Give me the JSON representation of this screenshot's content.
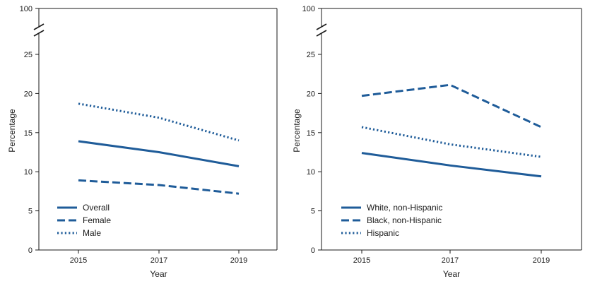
{
  "chart_data": [
    {
      "type": "line",
      "xlabel": "Year",
      "ylabel": "Percentage",
      "x": [
        "2015",
        "2017",
        "2019"
      ],
      "yticks": [
        "0",
        "5",
        "10",
        "15",
        "20",
        "25",
        "100"
      ],
      "ylim": [
        0,
        25
      ],
      "axis_break": {
        "top_label": "100"
      },
      "grid": false,
      "legend_position": "bottom-left",
      "series": [
        {
          "name": "Overall",
          "style": "solid",
          "values": [
            13.9,
            12.5,
            10.7
          ]
        },
        {
          "name": "Female",
          "style": "dashed",
          "values": [
            8.9,
            8.3,
            7.2
          ]
        },
        {
          "name": "Male",
          "style": "dotted",
          "values": [
            18.7,
            16.9,
            14.0
          ]
        }
      ]
    },
    {
      "type": "line",
      "xlabel": "Year",
      "ylabel": "Percentage",
      "x": [
        "2015",
        "2017",
        "2019"
      ],
      "yticks": [
        "0",
        "5",
        "10",
        "15",
        "20",
        "25",
        "100"
      ],
      "ylim": [
        0,
        25
      ],
      "axis_break": {
        "top_label": "100"
      },
      "grid": false,
      "legend_position": "bottom-left",
      "series": [
        {
          "name": "White, non-Hispanic",
          "style": "solid",
          "values": [
            12.4,
            10.8,
            9.4
          ]
        },
        {
          "name": "Black, non-Hispanic",
          "style": "dashed",
          "values": [
            19.7,
            21.1,
            15.7
          ]
        },
        {
          "name": "Hispanic",
          "style": "dotted",
          "values": [
            15.7,
            13.5,
            11.9
          ]
        }
      ]
    }
  ],
  "colors": {
    "series": "#1f5c99",
    "axis": "#1a1a1a"
  }
}
